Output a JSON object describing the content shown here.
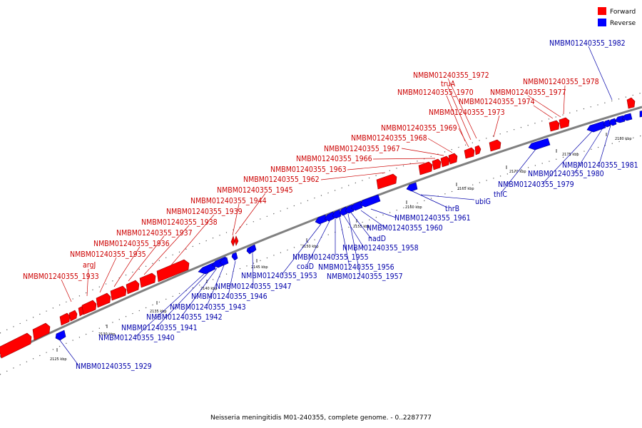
{
  "caption": "Neisseria meningitidis M01-240355, complete genome. - 0..2287777",
  "legend": {
    "forward": {
      "label": "Forward",
      "color": "#ff0000"
    },
    "reverse": {
      "label": "Reverse",
      "color": "#0000ff"
    }
  },
  "colors": {
    "forward_label": "#cc0000",
    "reverse_label": "#0000aa",
    "backbone": "#808080"
  },
  "ticks": [
    "2125 kbp",
    "2130 kbp",
    "2135 kbp",
    "2140 kbp",
    "2145 kbp",
    "2150 kbp",
    "2155 kbp",
    "2160 kbp",
    "2165 kbp",
    "2170 kbp",
    "2175 kbp",
    "2180 kbp"
  ],
  "forward_labels": [
    "NMBM01240355_1933",
    "argJ",
    "NMBM01240355_1935",
    "NMBM01240355_1936",
    "NMBM01240355_1937",
    "NMBM01240355_1938",
    "NMBM01240355_1939",
    "NMBM01240355_1944",
    "NMBM01240355_1945",
    "NMBM01240355_1962",
    "NMBM01240355_1963",
    "NMBM01240355_1966",
    "NMBM01240355_1967",
    "NMBM01240355_1968",
    "NMBM01240355_1969",
    "NMBM01240355_1973",
    "NMBM01240355_1974",
    "NMBM01240355_1970",
    "truA",
    "NMBM01240355_1972",
    "NMBM01240355_1977",
    "NMBM01240355_1978"
  ],
  "reverse_labels": [
    "NMBM01240355_1982",
    "NMBM01240355_1981",
    "NMBM01240355_1980",
    "NMBM01240355_1979",
    "thiC",
    "ubiG",
    "thrB",
    "NMBM01240355_1961",
    "NMBM01240355_1960",
    "nadD",
    "NMBM01240355_1958",
    "NMBM01240355_1955",
    "coaD",
    "NMBM01240355_1956",
    "NMBM01240355_1957",
    "NMBM01240355_1953",
    "NMBM01240355_1947",
    "NMBM01240355_1946",
    "NMBM01240355_1943",
    "NMBM01240355_1942",
    "NMBM01240355_1941",
    "NMBM01240355_1940",
    "NMBM01240355_1929"
  ]
}
